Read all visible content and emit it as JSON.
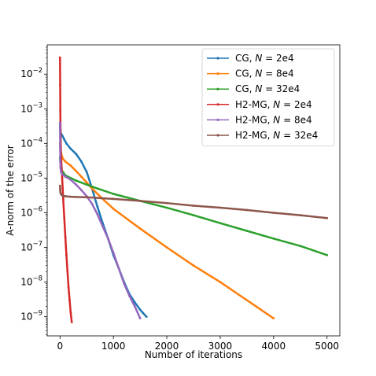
{
  "chart_data": {
    "type": "line",
    "xlabel": "Number of iterations",
    "ylabel": "A-norm of the error",
    "x_scale": "linear",
    "y_scale": "log",
    "xlim": [
      -240,
      5240
    ],
    "ylim": [
      2.8e-10,
      0.07
    ],
    "x_ticks": [
      0,
      1000,
      2000,
      3000,
      4000,
      5000
    ],
    "x_tick_labels": [
      "0",
      "1000",
      "2000",
      "3000",
      "4000",
      "5000"
    ],
    "y_ticks": [
      1e-09,
      1e-08,
      1e-07,
      1e-06,
      1e-05,
      0.0001,
      0.001,
      0.01
    ],
    "y_tick_base": "10",
    "y_tick_exponents": [
      "−9",
      "−8",
      "−7",
      "−6",
      "−5",
      "−4",
      "−3",
      "−2"
    ],
    "grid": false,
    "legend": "top-right",
    "series": [
      {
        "name_prefix": "CG, ",
        "name_var": "N",
        "name_suffix": " = 2e4",
        "color": "#1f77b4",
        "x": [
          0,
          5,
          15,
          30,
          50,
          80,
          120,
          200,
          300,
          400,
          500,
          600,
          700,
          800,
          900,
          1000,
          1100,
          1200,
          1300,
          1400,
          1500,
          1550,
          1620
        ],
        "y": [
          0.0003,
          0.00025,
          0.0002,
          0.00018,
          0.00016,
          0.00013,
          0.0001,
          7e-05,
          5e-05,
          3e-05,
          1.5e-05,
          5e-06,
          1.5e-06,
          5e-07,
          1.8e-07,
          6e-08,
          2.5e-08,
          1e-08,
          4.5e-09,
          2.6e-09,
          1.6e-09,
          1.3e-09,
          1e-09
        ]
      },
      {
        "name_prefix": "CG, ",
        "name_var": "N",
        "name_suffix": " = 8e4",
        "color": "#ff7f0e",
        "x": [
          0,
          5,
          15,
          30,
          60,
          100,
          200,
          300,
          400,
          500,
          600,
          800,
          1000,
          1500,
          2000,
          2500,
          3000,
          3500,
          4000
        ],
        "y": [
          0.0001,
          8e-05,
          6e-05,
          4.5e-05,
          3.5e-05,
          3e-05,
          2.3e-05,
          1.6e-05,
          1.1e-05,
          7.5e-06,
          5e-06,
          2.5e-06,
          1.3e-06,
          3.5e-07,
          1e-07,
          3e-08,
          1e-08,
          3e-09,
          9e-10
        ]
      },
      {
        "name_prefix": "CG, ",
        "name_var": "N",
        "name_suffix": " = 32e4",
        "color": "#2ca02c",
        "x": [
          0,
          5,
          10,
          20,
          40,
          70,
          100,
          200,
          300,
          500,
          700,
          1000,
          1500,
          2000,
          2500,
          3000,
          3500,
          4000,
          4500,
          5000
        ],
        "y": [
          4e-05,
          3e-05,
          2.5e-05,
          2e-05,
          1.6e-05,
          1.4e-05,
          1.2e-05,
          1e-05,
          8.5e-06,
          6.5e-06,
          5e-06,
          3.5e-06,
          2.2e-06,
          1.4e-06,
          8.5e-07,
          5e-07,
          3e-07,
          1.8e-07,
          1.1e-07,
          6e-08
        ]
      },
      {
        "name_prefix": "H2-MG, ",
        "name_var": "N",
        "name_suffix": " = 2e4",
        "color": "#d62728",
        "x": [
          0,
          3,
          6,
          10,
          15,
          20,
          30,
          40,
          50,
          60,
          80,
          100,
          120,
          140,
          160,
          180,
          200,
          220
        ],
        "y": [
          0.03,
          0.005,
          0.0009,
          0.00025,
          8e-05,
          4e-05,
          2e-05,
          1e-05,
          5e-06,
          2.5e-06,
          7e-07,
          2e-07,
          6e-08,
          2e-08,
          7e-09,
          3e-09,
          1.3e-09,
          7e-10
        ]
      },
      {
        "name_prefix": "H2-MG, ",
        "name_var": "N",
        "name_suffix": " = 8e4",
        "color": "#9467bd",
        "x": [
          0,
          3,
          6,
          10,
          20,
          40,
          70,
          100,
          200,
          300,
          400,
          500,
          600,
          700,
          800,
          900,
          1000,
          1100,
          1200,
          1300,
          1400,
          1500
        ],
        "y": [
          0.0004,
          8e-05,
          3e-05,
          2e-05,
          1.5e-05,
          1.3e-05,
          1.2e-05,
          1.1e-05,
          9e-06,
          6.5e-06,
          4.5e-06,
          3e-06,
          1.8e-06,
          9e-07,
          4e-07,
          1.8e-07,
          7e-08,
          2.5e-08,
          9e-09,
          4e-09,
          2e-09,
          9e-10
        ]
      },
      {
        "name_prefix": "H2-MG, ",
        "name_var": "N",
        "name_suffix": " = 32e4",
        "color": "#8c564b",
        "x": [
          0,
          3,
          8,
          20,
          50,
          100,
          200,
          300,
          500,
          1000,
          1500,
          2000,
          2500,
          3000,
          3500,
          4000,
          4500,
          5000
        ],
        "y": [
          6e-06,
          4.5e-06,
          3.8e-06,
          3.4e-06,
          3.1e-06,
          3e-06,
          2.9e-06,
          2.85e-06,
          2.8e-06,
          2.5e-06,
          2.2e-06,
          1.9e-06,
          1.6e-06,
          1.4e-06,
          1.2e-06,
          1e-06,
          8.5e-07,
          7e-07
        ]
      }
    ]
  }
}
